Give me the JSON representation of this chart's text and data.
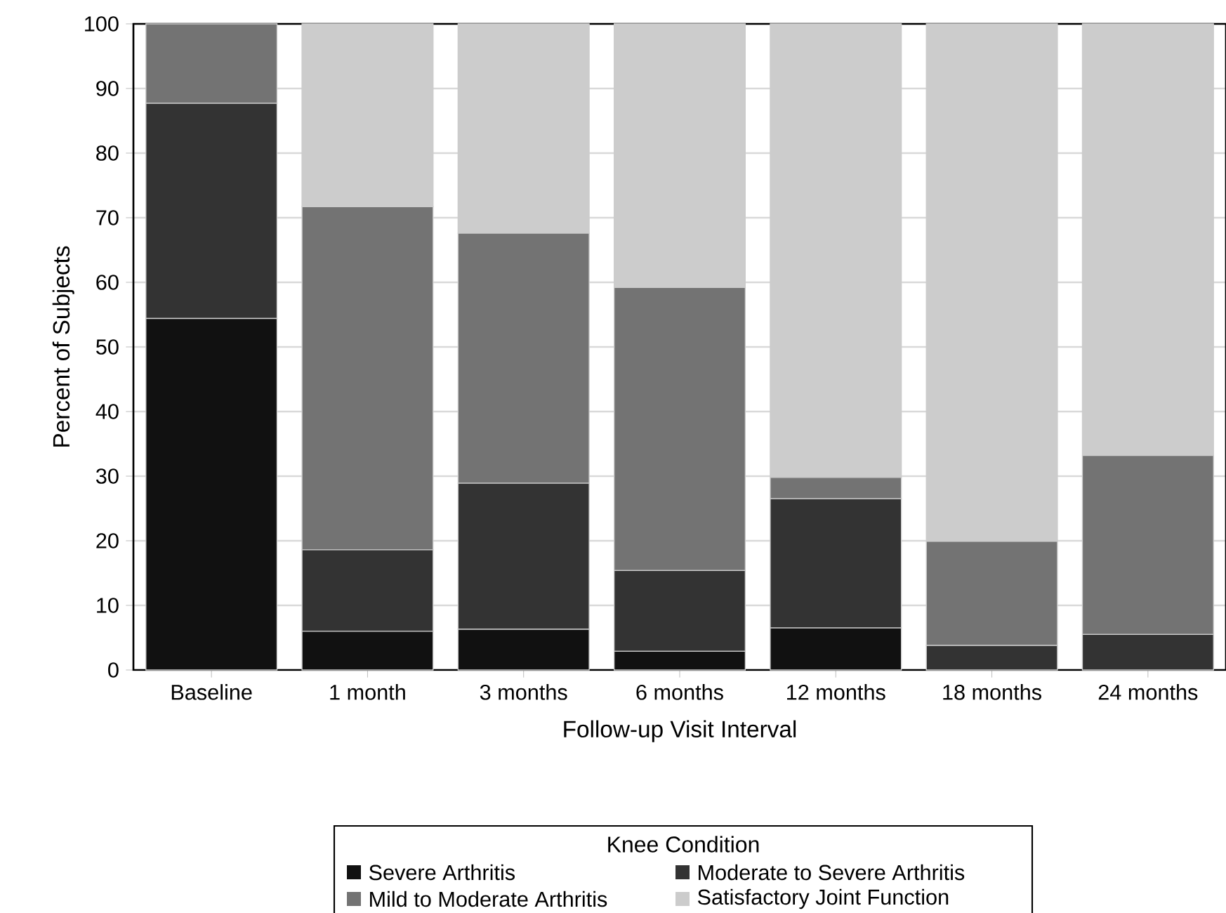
{
  "chart_data": {
    "type": "bar",
    "stacked": true,
    "xlabel": "Follow-up Visit Interval",
    "ylabel": "Percent of Subjects",
    "legend_title": "Knee Condition",
    "categories": [
      "Baseline",
      "1 month",
      "3 months",
      "6 months",
      "12 months",
      "18 months",
      "24 months"
    ],
    "series": [
      {
        "name": "Severe Arthritis",
        "color": "#111111",
        "values": [
          54.4,
          6.0,
          6.3,
          2.9,
          6.5,
          0,
          0
        ]
      },
      {
        "name": "Moderate to Severe Arthritis",
        "color": "#333333",
        "values": [
          33.3,
          12.6,
          22.6,
          12.5,
          20.0,
          3.8,
          5.5
        ]
      },
      {
        "name": "Mild to Moderate Arthritis",
        "color": "#737373",
        "values": [
          12.3,
          53.1,
          38.7,
          43.8,
          3.3,
          16.1,
          27.7
        ]
      },
      {
        "name": "Satisfactory Joint Function",
        "color": "#cccccc",
        "values": [
          0,
          28.3,
          32.4,
          40.8,
          70.2,
          80.1,
          66.8
        ]
      }
    ],
    "ylim": [
      0,
      100
    ],
    "yticks": [
      0,
      10,
      20,
      30,
      40,
      50,
      60,
      70,
      80,
      90,
      100
    ],
    "grid": "y",
    "legend": "bottom"
  }
}
